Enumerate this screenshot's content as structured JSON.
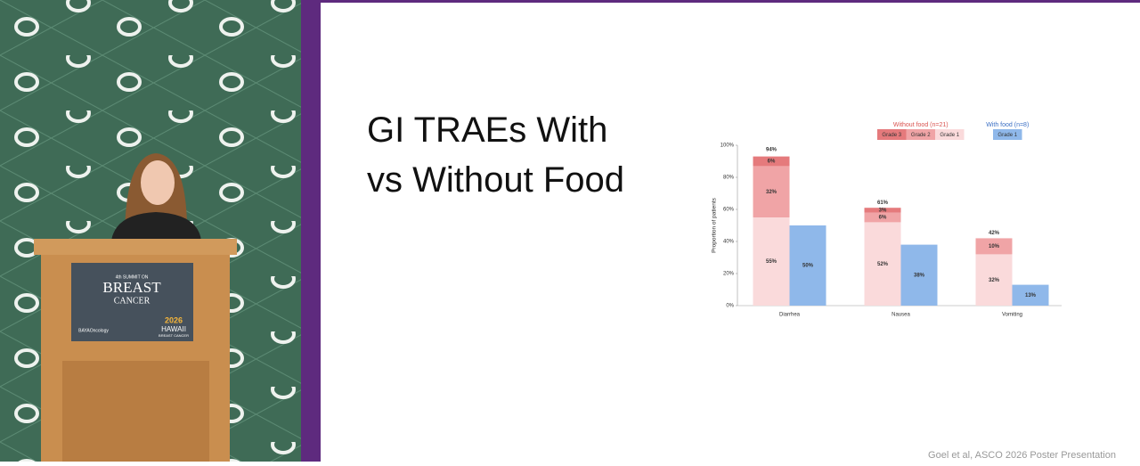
{
  "slide_title": "GI TRAEs With vs Without Food",
  "citation": "Goel et al, ASCO 2026 Poster Presentation",
  "podium": {
    "line1": "4th SUMMIT ON",
    "line2": "BREAST",
    "line3": "CANCER",
    "sponsor": "BAYAOncology",
    "year": "2026",
    "place": "HAWAII",
    "tag": "BREAST CANCER"
  },
  "chart_data": {
    "type": "grouped-stacked-bar",
    "y_label": "Proportion of patients",
    "categories": [
      "Diarrhea",
      "Nausea",
      "Vomiting"
    ],
    "ylim": [
      0,
      100
    ],
    "yticks": [
      {
        "value": 0,
        "label": "0%"
      },
      {
        "value": 20,
        "label": "20%"
      },
      {
        "value": 40,
        "label": "40%"
      },
      {
        "value": 60,
        "label": "60%"
      },
      {
        "value": 80,
        "label": "80%"
      },
      {
        "value": 100,
        "label": "100%"
      }
    ],
    "groups": [
      {
        "name": "Without food (n=21)",
        "color": "#d9534f",
        "series": [
          {
            "name": "Grade 1",
            "color": "#fadadb",
            "values": [
              55,
              52,
              32
            ],
            "value_labels": [
              "55%",
              "52%",
              "32%"
            ]
          },
          {
            "name": "Grade 2",
            "color": "#f0a4a6",
            "values": [
              32,
              6,
              10
            ],
            "value_labels": [
              "32%",
              "6%",
              "10%"
            ]
          },
          {
            "name": "Grade 3",
            "color": "#e57a7c",
            "values": [
              6,
              3,
              null
            ],
            "value_labels": [
              "6%",
              "3%",
              null
            ]
          }
        ],
        "totals": {
          "values": [
            94,
            61,
            42
          ],
          "value_labels": [
            "94%",
            "61%",
            "42%"
          ]
        }
      },
      {
        "name": "With food (n=8)",
        "color": "#3b6fc4",
        "series": [
          {
            "name": "Grade 1",
            "color": "#8fb8ea",
            "values": [
              50,
              38,
              13
            ],
            "value_labels": [
              "50%",
              "38%",
              "13%"
            ]
          }
        ]
      }
    ]
  }
}
